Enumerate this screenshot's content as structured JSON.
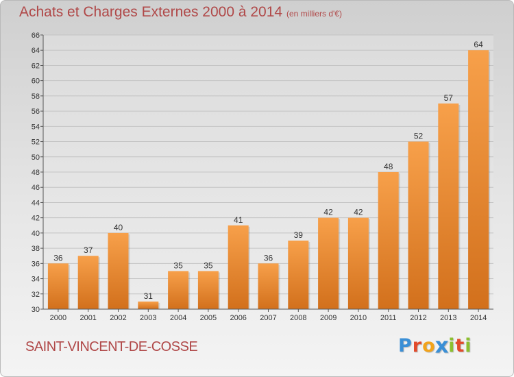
{
  "header": {
    "title": "Achats et Charges Externes 2000 à 2014",
    "unit": "(en milliers d'€)"
  },
  "footer": {
    "commune": "SAINT-VINCENT-DE-COSSE",
    "brand": "Proxiti",
    "brand_letters": [
      {
        "char": "P",
        "color": "#3a8fd6"
      },
      {
        "char": "r",
        "color": "#e24a2b"
      },
      {
        "char": "o",
        "color": "#f2a31b"
      },
      {
        "char": "x",
        "color": "#3a8fd6"
      },
      {
        "char": "i",
        "color": "#8cbf2f"
      },
      {
        "char": "t",
        "color": "#e24a2b"
      },
      {
        "char": "i",
        "color": "#8cbf2f"
      }
    ]
  },
  "colors": {
    "bar_top": "#f7a04a",
    "bar_bottom": "#d2701c",
    "text": "#333333",
    "title": "#b04848"
  },
  "chart_data": {
    "type": "bar",
    "title": "Achats et Charges Externes 2000 à 2014",
    "xlabel": "",
    "ylabel": "",
    "categories": [
      "2000",
      "2001",
      "2002",
      "2003",
      "2004",
      "2005",
      "2006",
      "2007",
      "2008",
      "2009",
      "2010",
      "2011",
      "2012",
      "2013",
      "2014"
    ],
    "values": [
      36,
      37,
      40,
      31,
      35,
      35,
      41,
      36,
      39,
      42,
      42,
      48,
      52,
      57,
      64
    ],
    "ylim": [
      30,
      66
    ],
    "yticks": [
      30,
      32,
      34,
      36,
      38,
      40,
      42,
      44,
      46,
      48,
      50,
      52,
      54,
      56,
      58,
      60,
      62,
      64,
      66
    ],
    "grid": true,
    "data_labels": true
  }
}
